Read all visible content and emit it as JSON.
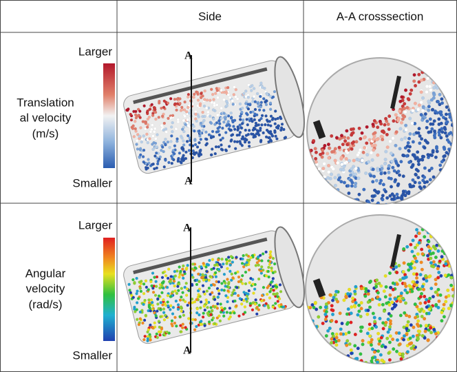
{
  "table": {
    "header": {
      "side": "Side",
      "crosssection": "A-A crosssection"
    },
    "rows": [
      {
        "scale_top": "Larger",
        "label": [
          "Translation",
          "al velocity",
          "(m/s)"
        ],
        "scale_bottom": "Smaller",
        "section_marks": [
          "A",
          "A"
        ]
      },
      {
        "scale_top": "Larger",
        "label": [
          "Angular",
          "velocity",
          "(rad/s)"
        ],
        "scale_bottom": "Smaller",
        "section_marks": [
          "A",
          "A"
        ]
      }
    ]
  }
}
